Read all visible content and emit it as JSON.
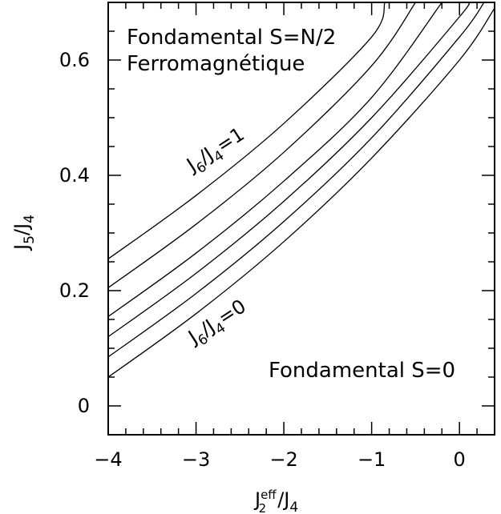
{
  "chart_data": {
    "type": "line",
    "title": "",
    "xlabel": "J2eff/J4",
    "ylabel": "J5/J4",
    "xlim": [
      -4.0,
      0.4
    ],
    "ylim": [
      -0.05,
      0.7
    ],
    "x_ticks": [
      -4,
      -3,
      -2,
      -1,
      0
    ],
    "x_tick_labels": [
      "−4",
      "−3",
      "−2",
      "−1",
      "0"
    ],
    "y_ticks": [
      0,
      0.2,
      0.4,
      0.6
    ],
    "y_tick_labels": [
      "0",
      "0.2",
      "0.4",
      "0.6"
    ],
    "grid": false,
    "legend": "none",
    "series": [
      {
        "values": [
          [
            -4.0,
            0.05
          ],
          [
            -3.0,
            0.16
          ],
          [
            -2.0,
            0.285
          ],
          [
            -1.0,
            0.43
          ],
          [
            0.0,
            0.6
          ],
          [
            0.4,
            0.69
          ]
        ]
      },
      {
        "values": [
          [
            -4.0,
            0.085
          ],
          [
            -3.0,
            0.195
          ],
          [
            -2.0,
            0.32
          ],
          [
            -1.0,
            0.465
          ],
          [
            0.0,
            0.64
          ],
          [
            0.28,
            0.7
          ]
        ]
      },
      {
        "values": [
          [
            -4.0,
            0.12
          ],
          [
            -3.0,
            0.23
          ],
          [
            -2.0,
            0.355
          ],
          [
            -1.0,
            0.5
          ],
          [
            0.0,
            0.675
          ],
          [
            0.1,
            0.7
          ]
        ]
      },
      {
        "values": [
          [
            -4.0,
            0.155
          ],
          [
            -3.0,
            0.265
          ],
          [
            -2.0,
            0.39
          ],
          [
            -1.0,
            0.535
          ],
          [
            -0.2,
            0.7
          ]
        ]
      },
      {
        "values": [
          [
            -4.0,
            0.205
          ],
          [
            -3.0,
            0.315
          ],
          [
            -2.0,
            0.44
          ],
          [
            -1.0,
            0.59
          ],
          [
            -0.5,
            0.7
          ]
        ]
      },
      {
        "values": [
          [
            -4.0,
            0.255
          ],
          [
            -3.0,
            0.365
          ],
          [
            -2.0,
            0.49
          ],
          [
            -1.0,
            0.64
          ],
          [
            -0.85,
            0.7
          ]
        ]
      }
    ],
    "annotations": {
      "top_line1": "Fondamental S=N/2",
      "top_line2": "Ferromagnétique",
      "bottom": "Fondamental S=0",
      "curve_top": {
        "J": "J",
        "sub6": "6",
        "slash": "/",
        "sub4": "4",
        "eq": "=1"
      },
      "curve_bottom": {
        "J": "J",
        "sub6": "6",
        "slash": "/",
        "sub4": "4",
        "eq": "=0"
      }
    },
    "axis_title_parts": {
      "x": {
        "J": "J",
        "sup": "eff",
        "sub": "2",
        "rest": "/J",
        "sub2": "4"
      },
      "y": {
        "J": "J",
        "sub": "5",
        "rest": "/J",
        "sub2": "4"
      }
    }
  }
}
